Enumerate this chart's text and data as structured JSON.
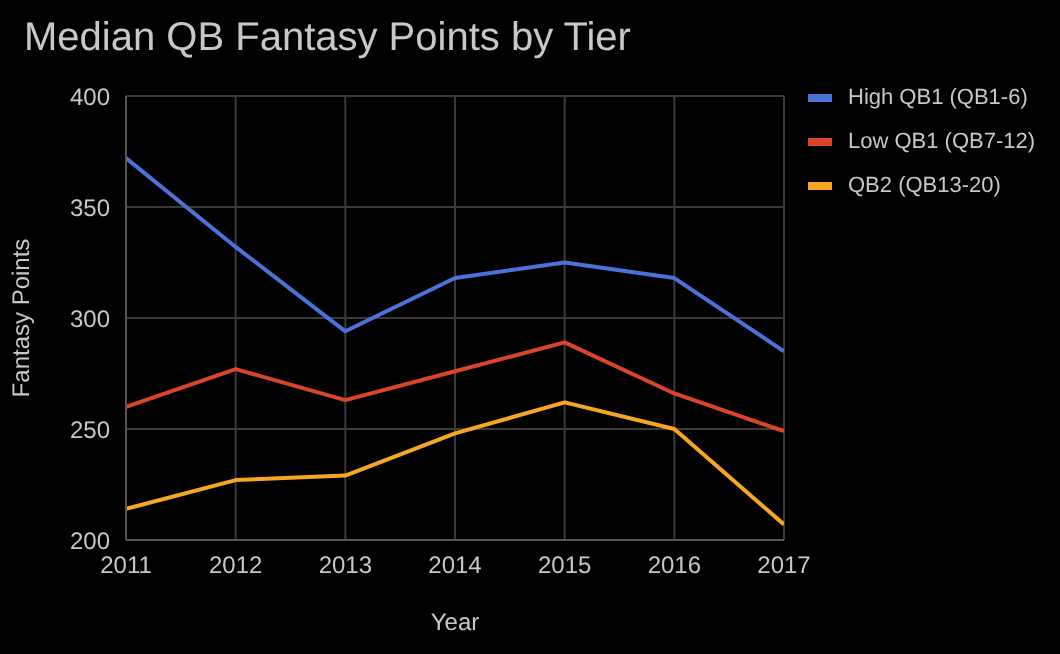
{
  "chart_data": {
    "type": "line",
    "title": "Median QB Fantasy Points by Tier",
    "xlabel": "Year",
    "ylabel": "Fantasy Points",
    "x": [
      2011,
      2012,
      2013,
      2014,
      2015,
      2016,
      2017
    ],
    "series": [
      {
        "name": "High QB1 (QB1-6)",
        "color": "#4a72d9",
        "values": [
          372,
          332,
          294,
          318,
          325,
          318,
          285
        ]
      },
      {
        "name": "Low QB1 (QB7-12)",
        "color": "#d9442a",
        "values": [
          260,
          277,
          263,
          276,
          289,
          266,
          249
        ]
      },
      {
        "name": "QB2 (QB13-20)",
        "color": "#f5a623",
        "values": [
          214,
          227,
          229,
          248,
          262,
          250,
          207
        ]
      }
    ],
    "xlim": [
      2011,
      2017
    ],
    "xticks": [
      2011,
      2012,
      2013,
      2014,
      2015,
      2016,
      2017
    ],
    "ylim": [
      200,
      400
    ],
    "yticks": [
      200,
      250,
      300,
      350,
      400
    ],
    "grid": true,
    "legend": "top right",
    "marker": "none",
    "line_style": "solid"
  }
}
